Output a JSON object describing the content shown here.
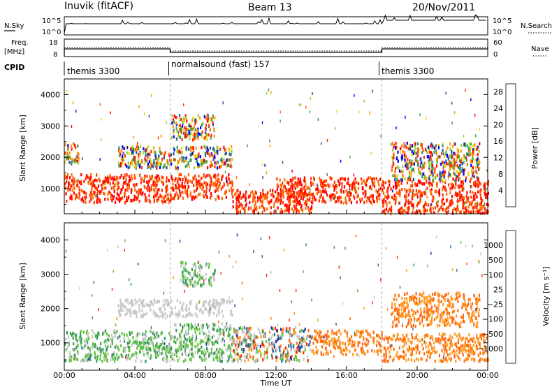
{
  "header": {
    "station": "Inuvik (fitACF)",
    "beam": "Beam 13",
    "date": "20/Nov/2011"
  },
  "noise_panel": {
    "left_label": "N.Sky",
    "right_label": "N.Search",
    "left_ticks": [
      "10^5",
      "10^0"
    ],
    "right_ticks": [
      "10^5",
      "10^0"
    ]
  },
  "freq_panel": {
    "left_label_line1": "Freq.",
    "left_label_line2": "[MHz]",
    "right_label": "Nave",
    "left_ticks": [
      "18",
      "8"
    ],
    "right_ticks": [
      "60",
      "0"
    ]
  },
  "cpid_panel": {
    "label": "CPID",
    "segments": [
      {
        "name": "themis 3300",
        "start_hour": 0,
        "end_hour": 6
      },
      {
        "name": "normalsound (fast) 157",
        "start_hour": 6,
        "end_hour": 18
      },
      {
        "name": "themis 3300",
        "start_hour": 18,
        "end_hour": 24
      }
    ]
  },
  "colors": {
    "power": [
      "#0000ff",
      "#2e4ea6",
      "#3c8f64",
      "#3faa3c",
      "#9acd32",
      "#e6d81e",
      "#ff9a00",
      "#ff6a00",
      "#ff3200",
      "#ff0000"
    ],
    "velocity": [
      "#2233aa",
      "#2f6fa0",
      "#3b9a5a",
      "#5cc43a",
      "#c8c8c8",
      "#c8c8c8",
      "#ff9a20",
      "#ff6a10",
      "#ff2a00"
    ]
  },
  "chart_data": [
    {
      "type": "heatmap",
      "quantity": "Power",
      "xlabel": "",
      "ylabel": "Slant Range [km]",
      "xlim": [
        0,
        24
      ],
      "ylim": [
        200,
        4500
      ],
      "yticks": [
        "1000",
        "2000",
        "3000",
        "4000"
      ],
      "colorbar": {
        "label": "Power [dB]",
        "ticks": [
          "4",
          "8",
          "12",
          "16",
          "20",
          "24",
          "28"
        ],
        "range": [
          0,
          30
        ]
      },
      "regions": [
        {
          "x0": 0.0,
          "x1": 6.0,
          "y0": 600,
          "y1": 1500,
          "level": "high"
        },
        {
          "x0": 6.0,
          "x1": 9.5,
          "y0": 700,
          "y1": 1500,
          "level": "high"
        },
        {
          "x0": 9.5,
          "x1": 14.0,
          "y0": 250,
          "y1": 1000,
          "level": "high"
        },
        {
          "x0": 12.0,
          "x1": 18.0,
          "y0": 600,
          "y1": 1400,
          "level": "high"
        },
        {
          "x0": 18.0,
          "x1": 24.0,
          "y0": 250,
          "y1": 1300,
          "level": "high"
        },
        {
          "x0": 3.0,
          "x1": 9.5,
          "y0": 1700,
          "y1": 2400,
          "level": "mixed"
        },
        {
          "x0": 6.0,
          "x1": 8.5,
          "y0": 2600,
          "y1": 3400,
          "level": "mixed"
        },
        {
          "x0": 18.5,
          "x1": 23.5,
          "y0": 1300,
          "y1": 2500,
          "level": "mixed"
        },
        {
          "x0": 0.0,
          "x1": 0.8,
          "y0": 1800,
          "y1": 2500,
          "level": "mixed"
        }
      ]
    },
    {
      "type": "heatmap",
      "quantity": "Velocity",
      "xlabel": "Time UT",
      "ylabel": "Slant Range [km]",
      "xlim": [
        0,
        24
      ],
      "ylim": [
        200,
        4500
      ],
      "yticks": [
        "1000",
        "2000",
        "3000",
        "4000"
      ],
      "xticks": [
        "00:00",
        "04:00",
        "08:00",
        "12:00",
        "16:00",
        "20:00",
        "00:00"
      ],
      "colorbar": {
        "label": "Velocity [m s⁻¹]",
        "ticks": [
          "1000",
          "500",
          "100",
          "25",
          "−25",
          "−100",
          "−500",
          "−1000"
        ]
      },
      "regions": [
        {
          "x0": 0.0,
          "x1": 6.0,
          "y0": 500,
          "y1": 1400,
          "level": "green"
        },
        {
          "x0": 6.0,
          "x1": 9.5,
          "y0": 500,
          "y1": 1600,
          "level": "green"
        },
        {
          "x0": 9.5,
          "x1": 14.0,
          "y0": 500,
          "y1": 1500,
          "level": "mixed"
        },
        {
          "x0": 14.0,
          "x1": 18.0,
          "y0": 700,
          "y1": 1400,
          "level": "orange"
        },
        {
          "x0": 18.0,
          "x1": 24.0,
          "y0": 500,
          "y1": 1300,
          "level": "orange"
        },
        {
          "x0": 3.0,
          "x1": 9.5,
          "y0": 1800,
          "y1": 2300,
          "level": "grey"
        },
        {
          "x0": 6.5,
          "x1": 8.5,
          "y0": 2700,
          "y1": 3400,
          "level": "green"
        },
        {
          "x0": 18.5,
          "x1": 23.5,
          "y0": 1500,
          "y1": 2500,
          "level": "orange"
        }
      ]
    }
  ]
}
